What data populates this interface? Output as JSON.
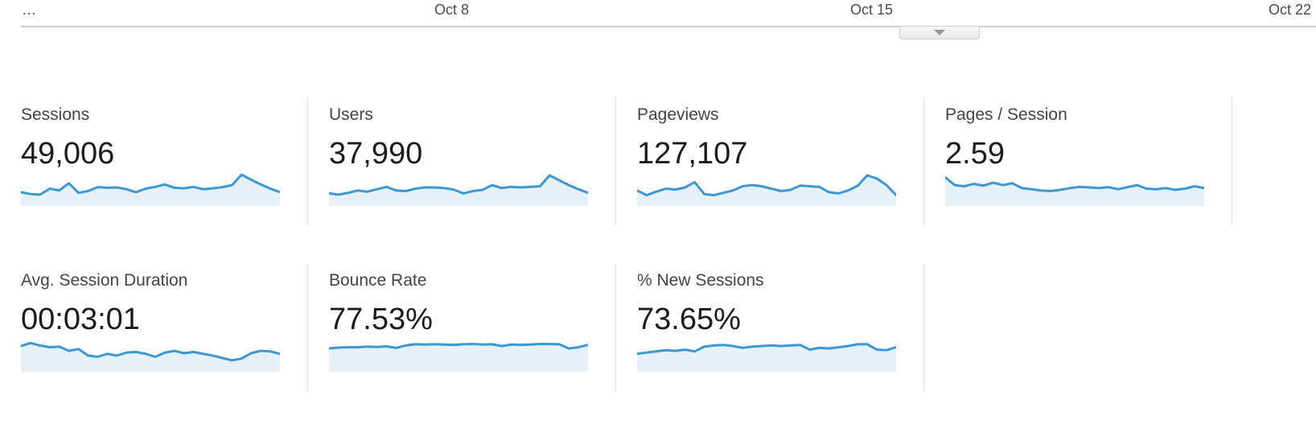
{
  "timeline": {
    "ellipsis": "…",
    "ticks": [
      {
        "label": "Oct 8"
      },
      {
        "label": "Oct 15"
      },
      {
        "label": "Oct 22"
      }
    ],
    "collapse_icon": "chevron-down"
  },
  "colors": {
    "spark_line": "#3d97d3",
    "spark_fill": "#e6f0f9",
    "divider": "#dcdcdc",
    "axis_line": "#cdcdcd",
    "label_text": "#444444",
    "value_text": "#1b1b1b",
    "tick_text": "#4a4a4a"
  },
  "metrics": {
    "rows": [
      [
        {
          "label": "Sessions",
          "value": "49,006"
        },
        {
          "label": "Users",
          "value": "37,990"
        },
        {
          "label": "Pageviews",
          "value": "127,107"
        },
        {
          "label": "Pages / Session",
          "value": "2.59"
        }
      ],
      [
        {
          "label": "Avg. Session Duration",
          "value": "00:03:01"
        },
        {
          "label": "Bounce Rate",
          "value": "77.53%"
        },
        {
          "label": "% New Sessions",
          "value": "73.65%"
        }
      ]
    ]
  },
  "chart_data": {
    "type": "area",
    "description": "Sparkline mini area charts, one per metric; values normalized 0-1 of sparkline height, evenly spaced across the visible date range (… to Oct 22).",
    "x_ticks": [
      "…",
      "Oct 8",
      "Oct 15",
      "Oct 22"
    ],
    "legend_position": "none",
    "grid": false,
    "series": [
      {
        "name": "Sessions",
        "values": [
          0.38,
          0.32,
          0.3,
          0.5,
          0.44,
          0.68,
          0.36,
          0.42,
          0.55,
          0.53,
          0.54,
          0.48,
          0.38,
          0.5,
          0.56,
          0.64,
          0.53,
          0.51,
          0.56,
          0.48,
          0.51,
          0.55,
          0.62,
          0.97,
          0.8,
          0.64,
          0.5,
          0.38
        ]
      },
      {
        "name": "Users",
        "values": [
          0.34,
          0.3,
          0.36,
          0.44,
          0.4,
          0.48,
          0.56,
          0.44,
          0.42,
          0.5,
          0.54,
          0.54,
          0.52,
          0.47,
          0.34,
          0.42,
          0.46,
          0.62,
          0.52,
          0.56,
          0.54,
          0.56,
          0.58,
          0.95,
          0.78,
          0.62,
          0.48,
          0.36
        ]
      },
      {
        "name": "Pageviews",
        "values": [
          0.44,
          0.28,
          0.4,
          0.5,
          0.47,
          0.54,
          0.72,
          0.32,
          0.28,
          0.36,
          0.44,
          0.58,
          0.62,
          0.58,
          0.5,
          0.42,
          0.46,
          0.6,
          0.58,
          0.56,
          0.38,
          0.34,
          0.44,
          0.6,
          0.95,
          0.84,
          0.62,
          0.28
        ]
      },
      {
        "name": "Pages / Session",
        "values": [
          0.88,
          0.62,
          0.58,
          0.66,
          0.6,
          0.7,
          0.62,
          0.68,
          0.52,
          0.48,
          0.44,
          0.42,
          0.46,
          0.52,
          0.56,
          0.54,
          0.52,
          0.55,
          0.48,
          0.55,
          0.62,
          0.5,
          0.48,
          0.52,
          0.46,
          0.5,
          0.58,
          0.52
        ]
      },
      {
        "name": "Avg. Session Duration",
        "values": [
          0.78,
          0.88,
          0.8,
          0.74,
          0.76,
          0.62,
          0.68,
          0.46,
          0.42,
          0.52,
          0.46,
          0.56,
          0.58,
          0.52,
          0.42,
          0.56,
          0.62,
          0.54,
          0.58,
          0.52,
          0.46,
          0.38,
          0.3,
          0.36,
          0.54,
          0.62,
          0.6,
          0.52
        ]
      },
      {
        "name": "Bounce Rate",
        "values": [
          0.7,
          0.73,
          0.74,
          0.74,
          0.76,
          0.75,
          0.77,
          0.72,
          0.8,
          0.84,
          0.83,
          0.84,
          0.83,
          0.82,
          0.84,
          0.85,
          0.83,
          0.84,
          0.78,
          0.83,
          0.82,
          0.83,
          0.85,
          0.85,
          0.84,
          0.7,
          0.74,
          0.82
        ]
      },
      {
        "name": "% New Sessions",
        "values": [
          0.52,
          0.56,
          0.6,
          0.64,
          0.62,
          0.66,
          0.6,
          0.76,
          0.8,
          0.82,
          0.78,
          0.72,
          0.76,
          0.78,
          0.8,
          0.78,
          0.8,
          0.82,
          0.66,
          0.72,
          0.7,
          0.74,
          0.78,
          0.84,
          0.84,
          0.66,
          0.64,
          0.74
        ]
      }
    ]
  }
}
